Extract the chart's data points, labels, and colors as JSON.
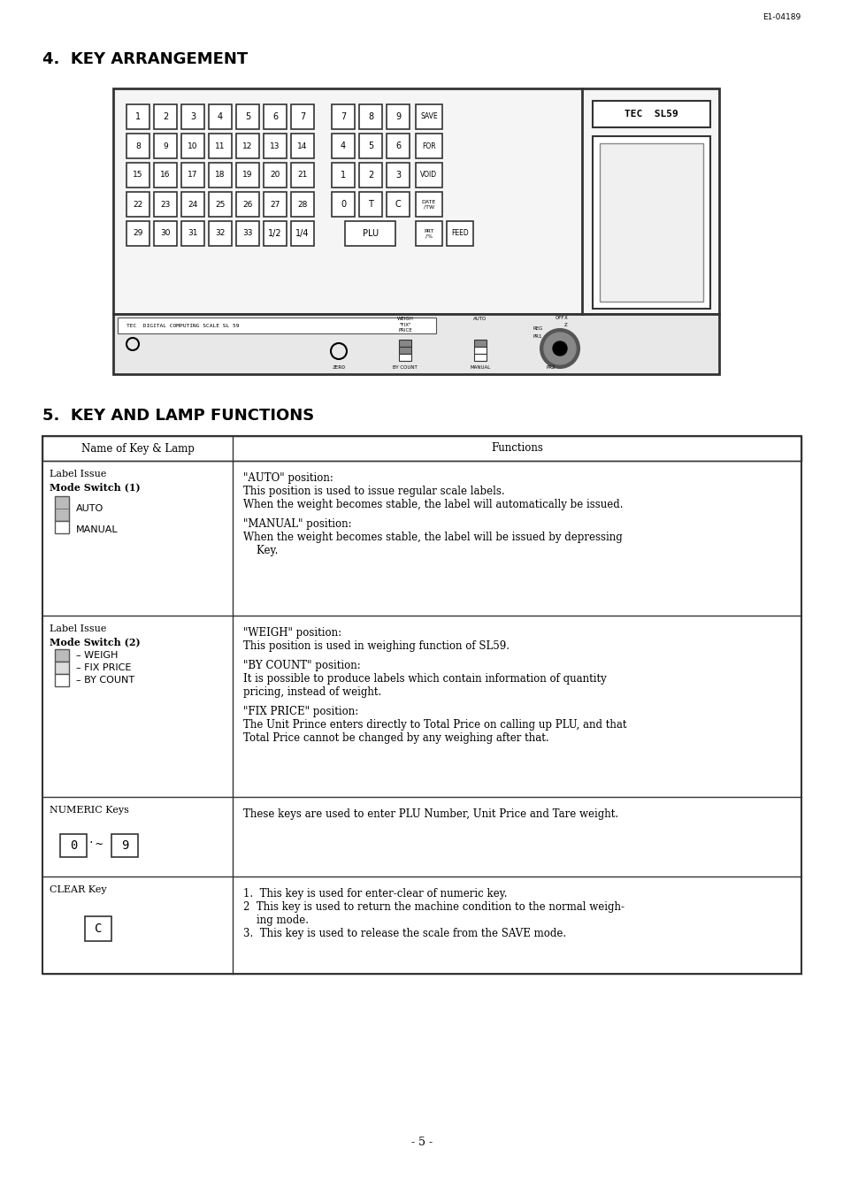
{
  "page_id": "E1-04189",
  "bg_color": "#ffffff",
  "section4_title": "4.  KEY ARRANGEMENT",
  "section5_title": "5.  KEY AND LAMP FUNCTIONS",
  "footer_text": "- 5 -",
  "table_header_col1": "Name of Key & Lamp",
  "table_header_col2": "Functions",
  "row1_keys": [
    "1",
    "2",
    "3",
    "4",
    "5",
    "6",
    "7"
  ],
  "row2_keys": [
    "8",
    "9",
    "10",
    "11",
    "12",
    "13",
    "14"
  ],
  "row3_keys": [
    "15",
    "16",
    "17",
    "18",
    "19",
    "20",
    "21"
  ],
  "row4_keys": [
    "22",
    "23",
    "24",
    "25",
    "26",
    "27",
    "28"
  ],
  "row5_keys": [
    "29",
    "30",
    "31",
    "32",
    "33"
  ],
  "np_row1": [
    "7",
    "8",
    "9"
  ],
  "np_row2": [
    "4",
    "5",
    "6"
  ],
  "np_row3": [
    "1",
    "2",
    "3"
  ],
  "np_row4": [
    "0",
    "T",
    "C"
  ],
  "side_keys_r1": "SAVE",
  "side_keys_r2": "FOR",
  "side_keys_r3": "VOID",
  "side_keys_r4": "DATE\n/TW",
  "side_keys_r5": "FEED",
  "table_rows": [
    {
      "col1_title": "Label Issue\nMode Switch (1)",
      "col1_has_switch1": true,
      "col2_lines": [
        {
          "text": "\"AUTO\" position:",
          "bold": false
        },
        {
          "text": "This position is used to issue regular scale labels.",
          "bold": false
        },
        {
          "text": "When the weight becomes stable, the label will automatically be issued.",
          "bold": false
        },
        {
          "text": "",
          "bold": false
        },
        {
          "text": "\"MANUAL\" position:",
          "bold": false
        },
        {
          "text": "When the weight becomes stable, the label will be issued by depressing",
          "bold": false
        },
        {
          "text": "    Key.",
          "bold": false
        }
      ]
    },
    {
      "col1_title": "Label Issue\nMode Switch (2)",
      "col1_has_switch2": true,
      "col2_lines": [
        {
          "text": "\"WEIGH\" position:",
          "bold": false
        },
        {
          "text": "This position is used in weighing function of SL59.",
          "bold": false
        },
        {
          "text": "",
          "bold": false
        },
        {
          "text": "\"BY COUNT\" position:",
          "bold": false
        },
        {
          "text": "It is possible to produce labels which contain information of quantity",
          "bold": false
        },
        {
          "text": "pricing, instead of weight.",
          "bold": false
        },
        {
          "text": "",
          "bold": false
        },
        {
          "text": "\"FIX PRICE\" position:",
          "bold": false
        },
        {
          "text": "The Unit Prince enters directly to Total Price on calling up PLU, and that",
          "bold": false
        },
        {
          "text": "Total Price cannot be changed by any weighing after that.",
          "bold": false
        }
      ]
    },
    {
      "col1_title": "NUMERIC Keys",
      "col1_has_numeric": true,
      "col2_lines": [
        {
          "text": "These keys are used to enter PLU Number, Unit Price and Tare weight.",
          "bold": false
        }
      ]
    },
    {
      "col1_title": "CLEAR Key",
      "col1_has_clear": true,
      "col2_lines": [
        {
          "text": "1.  This key is used for enter-clear of numeric key.",
          "bold": false
        },
        {
          "text": "2  This key is used to return the machine condition to the normal weigh-",
          "bold": false
        },
        {
          "text": "    ing mode.",
          "bold": false
        },
        {
          "text": "3.  This key is used to release the scale from the SAVE mode.",
          "bold": false
        }
      ]
    }
  ]
}
